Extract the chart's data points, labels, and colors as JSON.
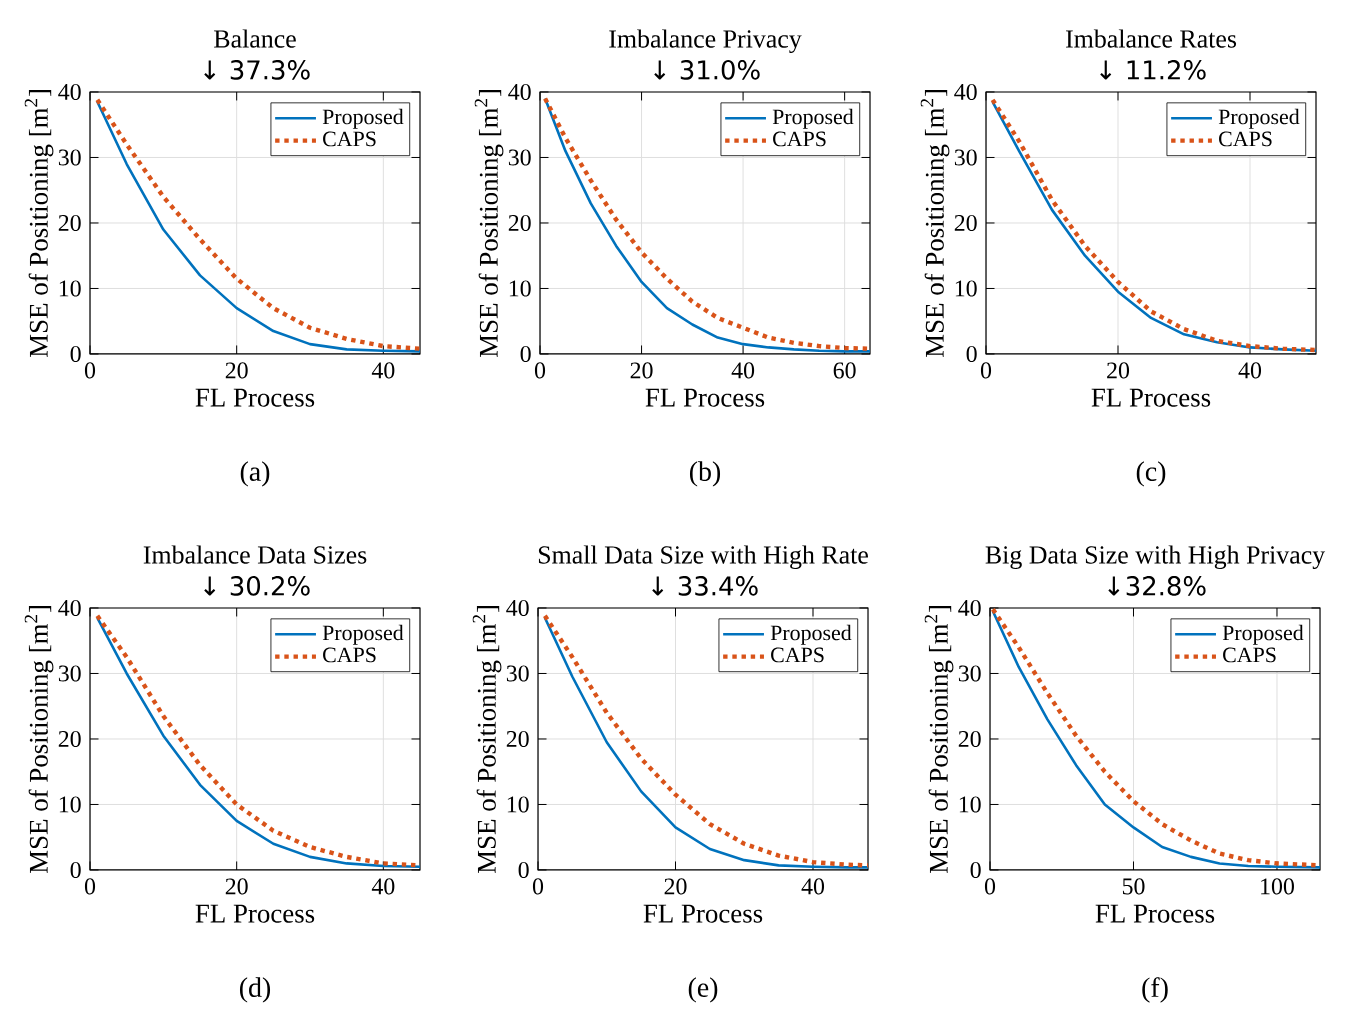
{
  "chart_data": [
    {
      "type": "line",
      "title": "Balance",
      "subtitle": "↓ 37.3%",
      "xlabel": "FL Process",
      "ylabel": "MSE of Positioning [m$^{2}$]",
      "annotations": [
        "(a)"
      ],
      "xlim": [
        0,
        45
      ],
      "ylim": [
        0,
        40
      ],
      "xticks": [
        0,
        20,
        40
      ],
      "yticks": [
        0,
        10,
        20,
        30,
        40
      ],
      "grid": true,
      "legend": "top right",
      "x": [
        1,
        5,
        10,
        15,
        20,
        25,
        30,
        35,
        40,
        45
      ],
      "series": [
        {
          "name": "Proposed",
          "color": "#0072bd",
          "line_style": "solid",
          "values": [
            38.5,
            29,
            19,
            12,
            7,
            3.5,
            1.5,
            0.7,
            0.5,
            0.4
          ]
        },
        {
          "name": "CAPS",
          "color": "#d95319",
          "line_style": "dotted",
          "values": [
            38.8,
            32,
            24,
            17.5,
            11.5,
            7,
            4,
            2.3,
            1.2,
            0.8
          ]
        }
      ]
    },
    {
      "type": "line",
      "title": "Imbalance Privacy",
      "subtitle": "↓ 31.0%",
      "xlabel": "FL Process",
      "ylabel": "MSE of Positioning [m$^{2}$]",
      "annotations": [
        "(b)"
      ],
      "xlim": [
        0,
        65
      ],
      "ylim": [
        0,
        40
      ],
      "xticks": [
        0,
        20,
        40,
        60
      ],
      "yticks": [
        0,
        10,
        20,
        30,
        40
      ],
      "grid": true,
      "legend": "top right",
      "x": [
        1,
        5,
        10,
        15,
        20,
        25,
        30,
        35,
        40,
        45,
        50,
        55,
        60,
        65
      ],
      "series": [
        {
          "name": "Proposed",
          "color": "#0072bd",
          "line_style": "solid",
          "values": [
            39,
            31,
            23,
            16.5,
            11,
            7,
            4.5,
            2.5,
            1.5,
            1,
            0.7,
            0.5,
            0.4,
            0.4
          ]
        },
        {
          "name": "CAPS",
          "color": "#d95319",
          "line_style": "dotted",
          "values": [
            39,
            33,
            26.5,
            20.5,
            15.5,
            11.5,
            8,
            5.5,
            4,
            2.5,
            1.7,
            1.2,
            0.9,
            0.8
          ]
        }
      ]
    },
    {
      "type": "line",
      "title": "Imbalance Rates",
      "subtitle": "↓ 11.2%",
      "xlabel": "FL Process",
      "ylabel": "MSE of Positioning [m$^{2}$]",
      "annotations": [
        "(c)"
      ],
      "xlim": [
        0,
        50
      ],
      "ylim": [
        0,
        40
      ],
      "xticks": [
        0,
        20,
        40
      ],
      "yticks": [
        0,
        10,
        20,
        30,
        40
      ],
      "grid": true,
      "legend": "top right",
      "x": [
        1,
        5,
        10,
        15,
        20,
        25,
        30,
        35,
        40,
        45,
        50
      ],
      "series": [
        {
          "name": "Proposed",
          "color": "#0072bd",
          "line_style": "solid",
          "values": [
            38.5,
            31,
            22,
            15,
            9.5,
            5.5,
            3,
            1.8,
            1,
            0.7,
            0.5
          ]
        },
        {
          "name": "CAPS",
          "color": "#d95319",
          "line_style": "dotted",
          "values": [
            38.8,
            32.5,
            23.5,
            16.5,
            11,
            6.5,
            3.8,
            2,
            1.2,
            0.8,
            0.6
          ]
        }
      ]
    },
    {
      "type": "line",
      "title": "Imbalance Data Sizes",
      "subtitle": "↓ 30.2%",
      "xlabel": "FL Process",
      "ylabel": "MSE of Positioning [m$^{2}$]",
      "annotations": [
        "(d)"
      ],
      "xlim": [
        0,
        45
      ],
      "ylim": [
        0,
        40
      ],
      "xticks": [
        0,
        20,
        40
      ],
      "yticks": [
        0,
        10,
        20,
        30,
        40
      ],
      "grid": true,
      "legend": "top right",
      "x": [
        1,
        5,
        10,
        15,
        20,
        25,
        30,
        35,
        40,
        45
      ],
      "series": [
        {
          "name": "Proposed",
          "color": "#0072bd",
          "line_style": "solid",
          "values": [
            38.5,
            30,
            20.5,
            13,
            7.5,
            4,
            2,
            1,
            0.6,
            0.5
          ]
        },
        {
          "name": "CAPS",
          "color": "#d95319",
          "line_style": "dotted",
          "values": [
            38.8,
            32.5,
            23.5,
            16,
            10,
            6,
            3.5,
            2,
            1,
            0.7
          ]
        }
      ]
    },
    {
      "type": "line",
      "title": "Small Data Size with High Rate",
      "subtitle": "↓ 33.4%",
      "xlabel": "FL Process",
      "ylabel": "MSE of Positioning [m$^{2}$]",
      "annotations": [
        "(e)"
      ],
      "xlim": [
        0,
        48
      ],
      "ylim": [
        0,
        40
      ],
      "xticks": [
        0,
        20,
        40
      ],
      "yticks": [
        0,
        10,
        20,
        30,
        40
      ],
      "grid": true,
      "legend": "top right",
      "x": [
        1,
        5,
        10,
        15,
        20,
        25,
        30,
        35,
        40,
        45,
        48
      ],
      "series": [
        {
          "name": "Proposed",
          "color": "#0072bd",
          "line_style": "solid",
          "values": [
            38.5,
            29.5,
            19.5,
            12,
            6.5,
            3.2,
            1.5,
            0.7,
            0.5,
            0.4,
            0.4
          ]
        },
        {
          "name": "CAPS",
          "color": "#d95319",
          "line_style": "dotted",
          "values": [
            38.8,
            32.5,
            24,
            17,
            11.5,
            7,
            4,
            2.2,
            1.2,
            0.8,
            0.7
          ]
        }
      ]
    },
    {
      "type": "line",
      "title": "Big Data Size with High Privacy",
      "subtitle": "↓32.8%",
      "xlabel": "FL Process",
      "ylabel": "MSE of Positioning [m$^{2}$]",
      "annotations": [
        "(f)"
      ],
      "xlim": [
        0,
        115
      ],
      "ylim": [
        0,
        40
      ],
      "xticks": [
        0,
        50,
        100
      ],
      "yticks": [
        0,
        10,
        20,
        30,
        40
      ],
      "grid": true,
      "legend": "top right",
      "x": [
        1,
        10,
        20,
        30,
        40,
        50,
        60,
        70,
        80,
        90,
        100,
        115
      ],
      "series": [
        {
          "name": "Proposed",
          "color": "#0072bd",
          "line_style": "solid",
          "values": [
            39.5,
            31,
            23,
            16,
            10,
            6.5,
            3.5,
            2,
            1,
            0.6,
            0.5,
            0.4
          ]
        },
        {
          "name": "CAPS",
          "color": "#d95319",
          "line_style": "dotted",
          "values": [
            39.8,
            34,
            27,
            20.5,
            15,
            10.5,
            7,
            4.5,
            2.5,
            1.5,
            1,
            0.7
          ]
        }
      ]
    }
  ]
}
